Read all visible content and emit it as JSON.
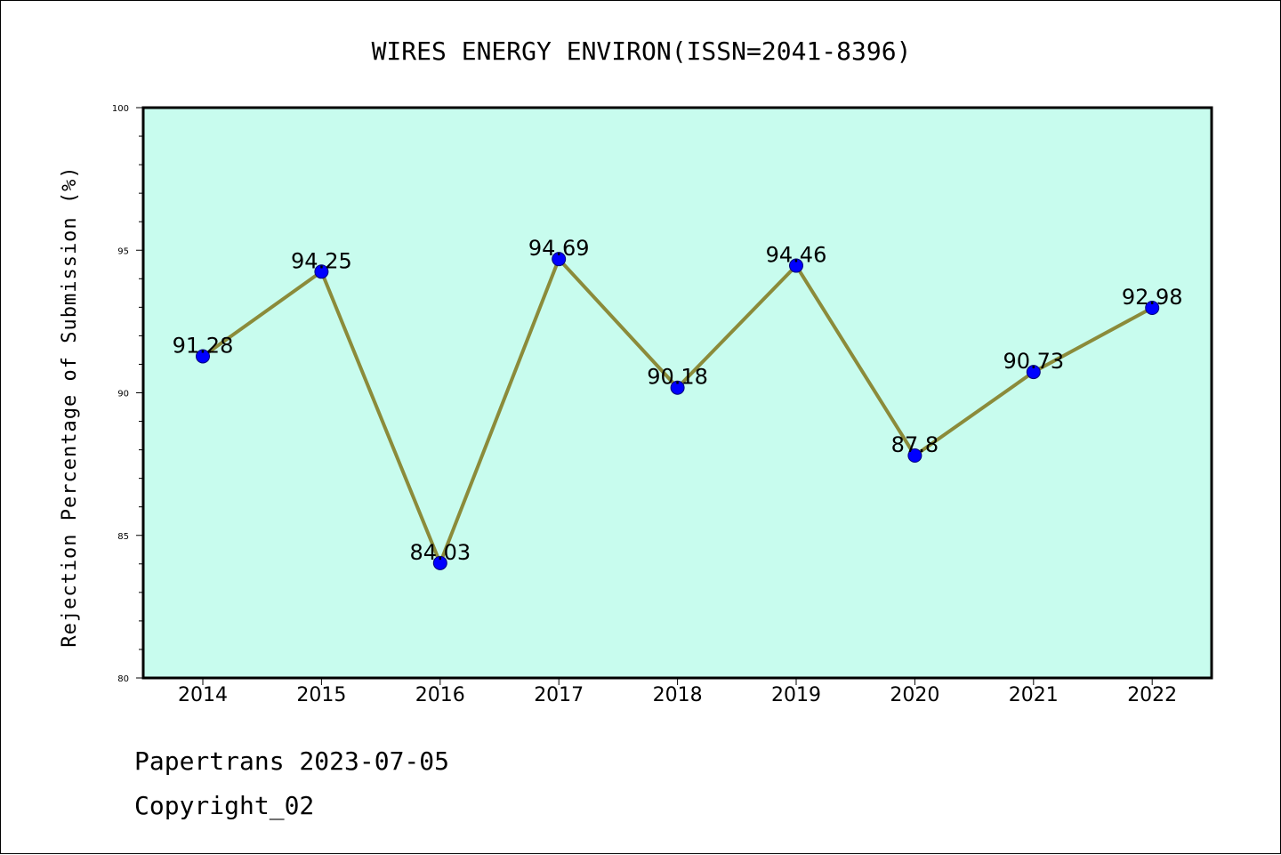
{
  "chart_data": {
    "type": "line",
    "title": "WIRES ENERGY ENVIRON(ISSN=2041-8396)",
    "xlabel": "",
    "ylabel": "Rejection Percentage of Submission (%)",
    "categories": [
      "2014",
      "2015",
      "2016",
      "2017",
      "2018",
      "2019",
      "2020",
      "2021",
      "2022"
    ],
    "series": [
      {
        "values": [
          91.28,
          94.25,
          84.03,
          94.69,
          90.18,
          94.46,
          87.8,
          90.73,
          92.98
        ]
      }
    ],
    "data_labels": [
      "91.28",
      "94.25",
      "84.03",
      "94.69",
      "90.18",
      "94.46",
      "87.8",
      "90.73",
      "92.98"
    ],
    "ylim": [
      80,
      100
    ],
    "yticks": [
      "80",
      "85",
      "90",
      "95",
      "100"
    ],
    "grid": false,
    "background": "#c8fcee",
    "line_color": "#8b8b3a",
    "marker_color": "#0000ff"
  },
  "footer": {
    "line1": "Papertrans 2023-07-05",
    "line2": "Copyright_02"
  }
}
